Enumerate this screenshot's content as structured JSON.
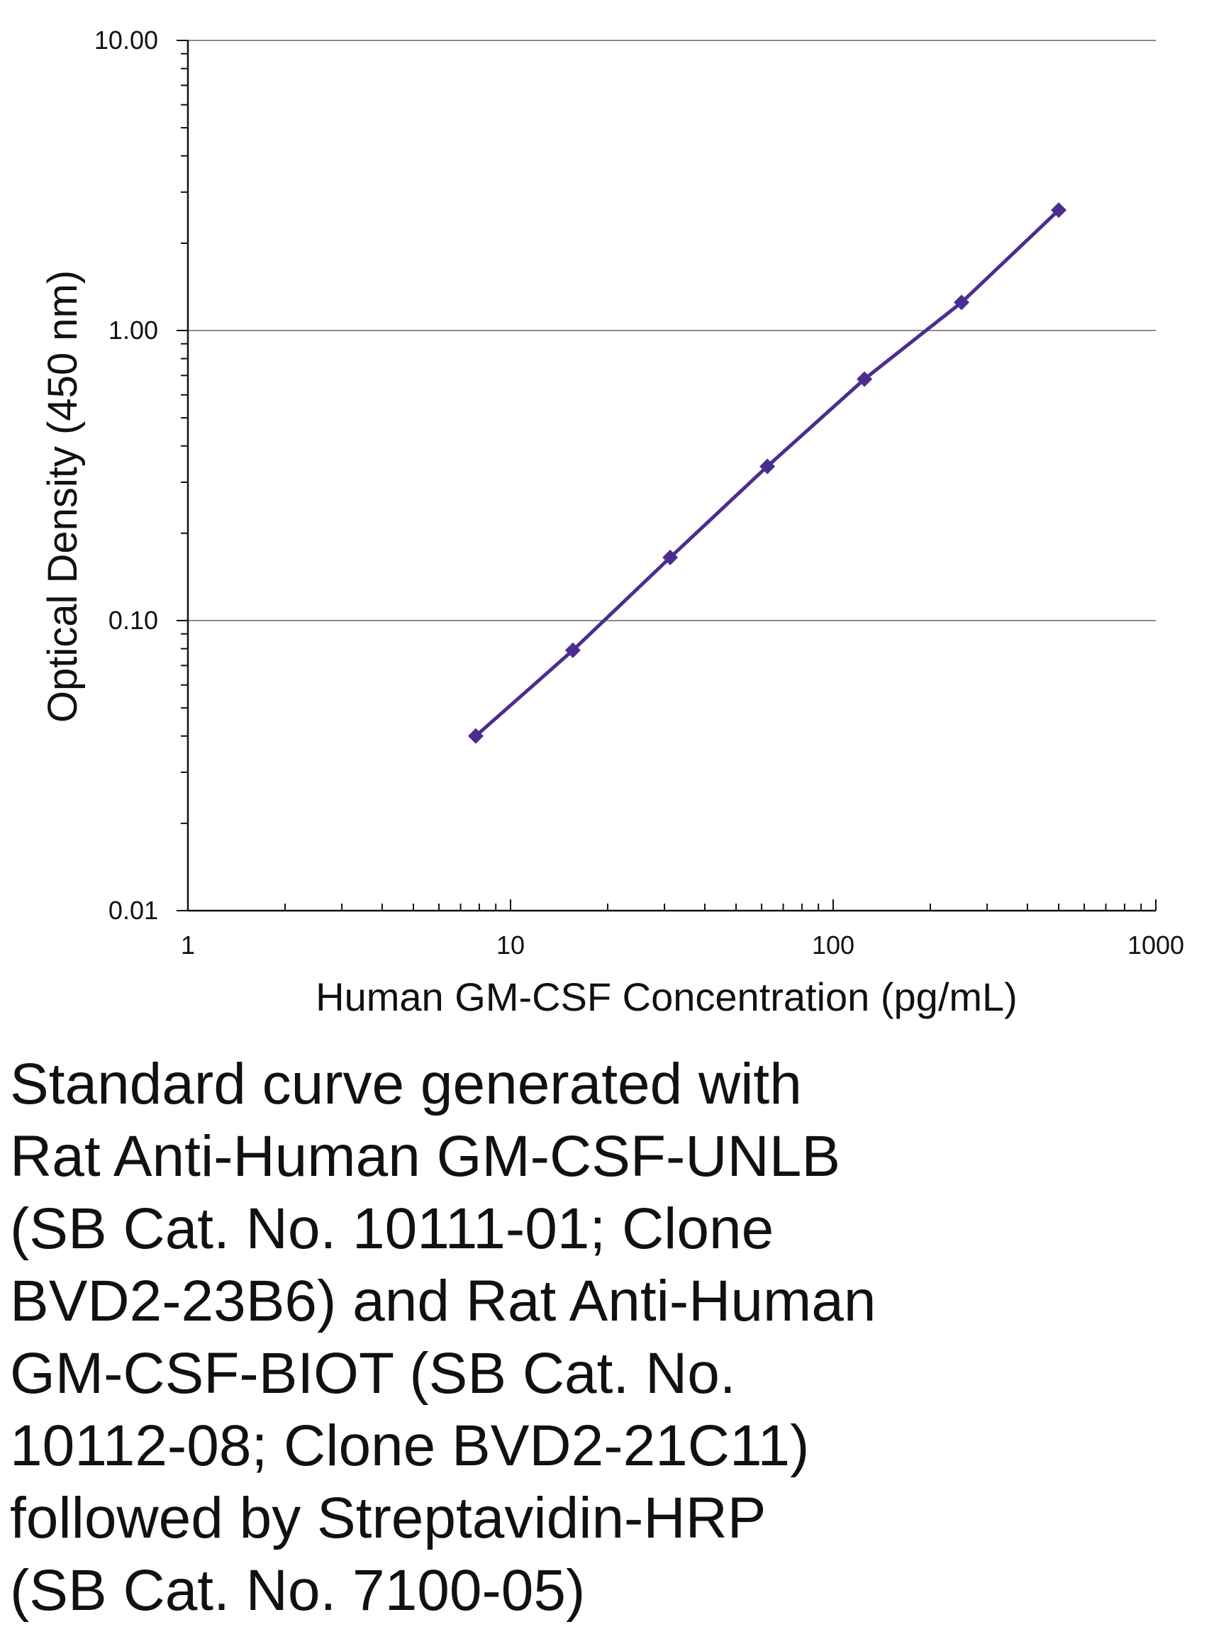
{
  "chart_data": {
    "type": "line",
    "title": "",
    "xlabel": "Human GM-CSF Concentration (pg/mL)",
    "ylabel": "Optical Density (450 nm)",
    "xscale": "log",
    "yscale": "log",
    "xlim": [
      1,
      1000
    ],
    "ylim": [
      0.01,
      10
    ],
    "x_ticks": [
      1,
      10,
      100,
      1000
    ],
    "x_tick_labels": [
      "1",
      "10",
      "100",
      "1000"
    ],
    "y_ticks": [
      0.01,
      0.1,
      1,
      10
    ],
    "y_tick_labels": [
      "0.01",
      "0.10",
      "1.00",
      "10.00"
    ],
    "grid": "horizontal major",
    "legend": "none",
    "series": [
      {
        "name": "Standard curve",
        "color": "#4b2d8f",
        "marker": "diamond",
        "x": [
          7.8,
          15.6,
          31.25,
          62.5,
          125,
          250,
          500
        ],
        "y": [
          0.04,
          0.079,
          0.165,
          0.34,
          0.68,
          1.25,
          2.6
        ]
      }
    ]
  },
  "caption": {
    "lines": [
      "Standard curve generated with",
      "Rat Anti-Human GM-CSF-UNLB",
      "(SB Cat. No. 10111-01; Clone",
      "BVD2-23B6) and Rat Anti-Human",
      "GM-CSF-BIOT (SB Cat. No.",
      "10112-08; Clone BVD2-21C11)",
      "followed by Streptavidin-HRP",
      "(SB Cat. No. 7100-05)"
    ]
  }
}
